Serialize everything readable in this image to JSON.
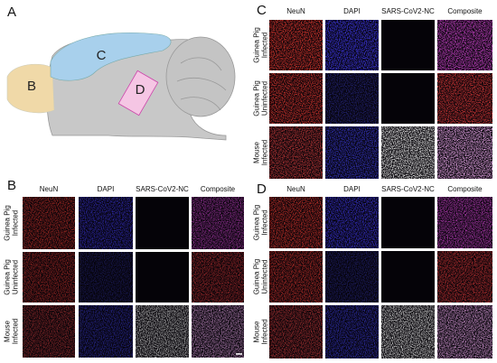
{
  "panel_letters": [
    "A",
    "B",
    "C",
    "D"
  ],
  "diagram": {
    "olfactory": "B",
    "cortex": "C",
    "region": "D"
  },
  "panels": [
    {
      "columns": [
        "NeuN",
        "DAPI",
        "SARS-CoV2-NC",
        "Composite"
      ],
      "rows": [
        [
          "Guinea Pig",
          "Infected"
        ],
        [
          "Guinea Pig",
          "Uninfected"
        ],
        [
          "Mouse",
          "Infected"
        ]
      ]
    },
    {
      "columns": [
        "NeuN",
        "DAPI",
        "SARS-CoV2-NC",
        "Composite"
      ],
      "rows": [
        [
          "Guinea Pig",
          "Infected"
        ],
        [
          "Guinea Pig",
          "Uninfected"
        ],
        [
          "Mouse",
          "Infected"
        ]
      ]
    },
    {
      "columns": [
        "NeuN",
        "DAPI",
        "SARS-CoV2-NC",
        "Composite"
      ],
      "rows": [
        [
          "Guinea Pig",
          "Infected"
        ],
        [
          "Guinea Pig",
          "Uninfected"
        ],
        [
          "Mouse",
          "Infected"
        ]
      ]
    }
  ]
}
